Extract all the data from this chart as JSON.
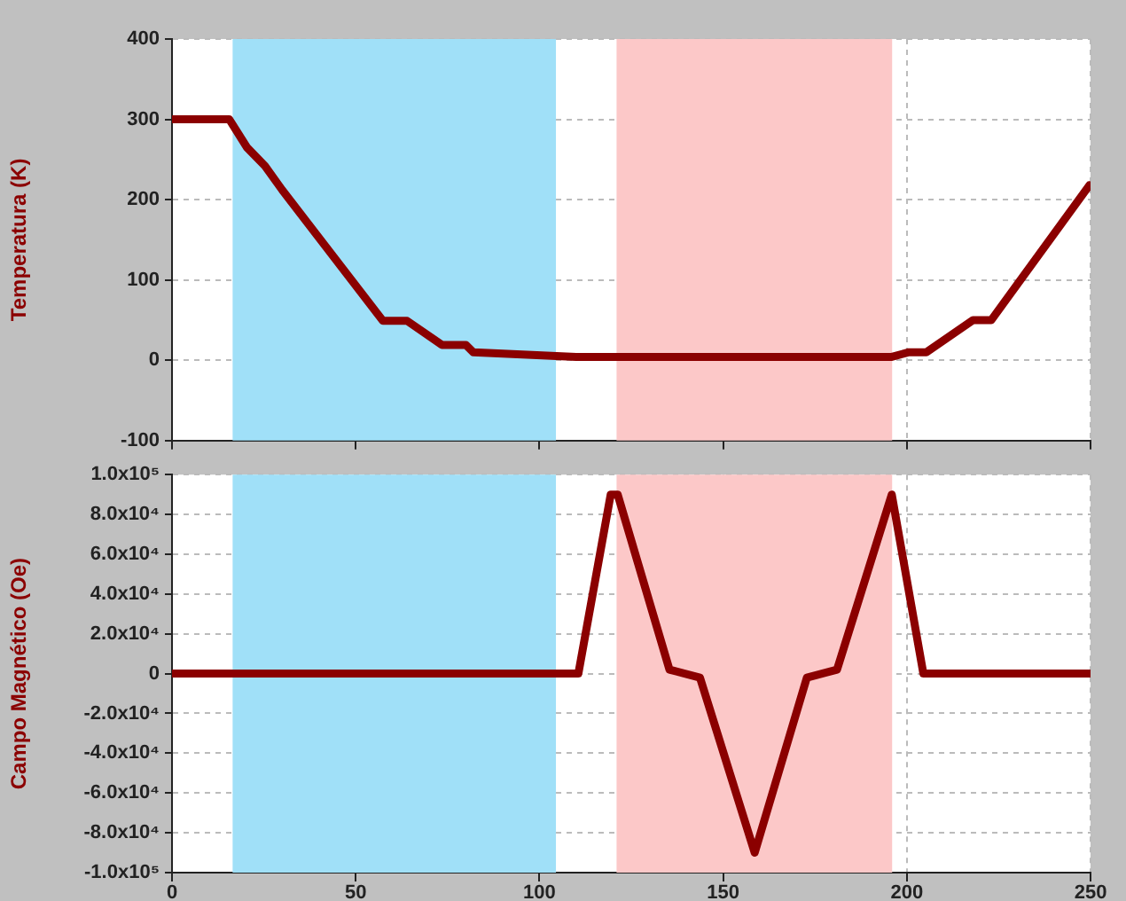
{
  "chart_data": [
    {
      "type": "line",
      "ylabel": "Temperatura (K)",
      "xlim": [
        0,
        250
      ],
      "xticks": [
        0,
        50,
        100,
        150,
        200,
        250
      ],
      "ylim": [
        -100,
        400
      ],
      "yticks": [
        -100,
        0,
        100,
        200,
        300,
        400
      ],
      "tick_labels": "y",
      "grid": true,
      "legend": false,
      "marker": "none",
      "line_style": "solid",
      "bands": [
        {
          "axis": "x",
          "from": 16.5,
          "to": 104.5,
          "color": "#a0e0f8"
        },
        {
          "axis": "x",
          "from": 121,
          "to": 196,
          "color": "#fcc8c8"
        }
      ],
      "series": [
        {
          "color": "#8b0000",
          "x": [
            0,
            15.6,
            20.4,
            25.3,
            30,
            57.4,
            64,
            73.5,
            80,
            82,
            110,
            195.7,
            200.6,
            205.3,
            218,
            223,
            249.7
          ],
          "values": [
            300,
            300,
            265,
            242,
            212,
            49,
            49,
            19,
            19,
            10,
            4,
            4,
            10,
            10,
            50,
            50,
            218
          ]
        }
      ]
    },
    {
      "type": "line",
      "ylabel": "Campo Magnético (Oe)",
      "xlim": [
        0,
        250
      ],
      "xticks": [
        0,
        50,
        100,
        150,
        200,
        250
      ],
      "ylim": [
        -100000,
        100000
      ],
      "yticks": [
        {
          "value": -100000,
          "label": "-1.0x10⁵"
        },
        {
          "value": -80000,
          "label": "-8.0x10⁴"
        },
        {
          "value": -60000,
          "label": "-6.0x10⁴"
        },
        {
          "value": -40000,
          "label": "-4.0x10⁴"
        },
        {
          "value": -20000,
          "label": "-2.0x10⁴"
        },
        0,
        {
          "value": 20000,
          "label": "2.0x10⁴"
        },
        {
          "value": 40000,
          "label": "4.0x10⁴"
        },
        {
          "value": 60000,
          "label": "6.0x10⁴"
        },
        {
          "value": 80000,
          "label": "8.0x10⁴"
        },
        {
          "value": 100000,
          "label": "1.0x10⁵"
        }
      ],
      "grid": true,
      "legend": false,
      "marker": "none",
      "line_style": "solid",
      "bands": [
        {
          "axis": "x",
          "from": 16.5,
          "to": 104.5,
          "color": "#a0e0f8"
        },
        {
          "axis": "x",
          "from": 121,
          "to": 196,
          "color": "#fcc8c8"
        }
      ],
      "series": [
        {
          "color": "#8b0000",
          "x": [
            0,
            110.6,
            119.4,
            121.3,
            135.4,
            143.7,
            158.6,
            172.8,
            181,
            195.9,
            204.5,
            250
          ],
          "values": [
            0,
            0,
            90000,
            90000,
            2000,
            -2000,
            -90000,
            -2000,
            2000,
            90000,
            0,
            0
          ]
        }
      ]
    }
  ]
}
